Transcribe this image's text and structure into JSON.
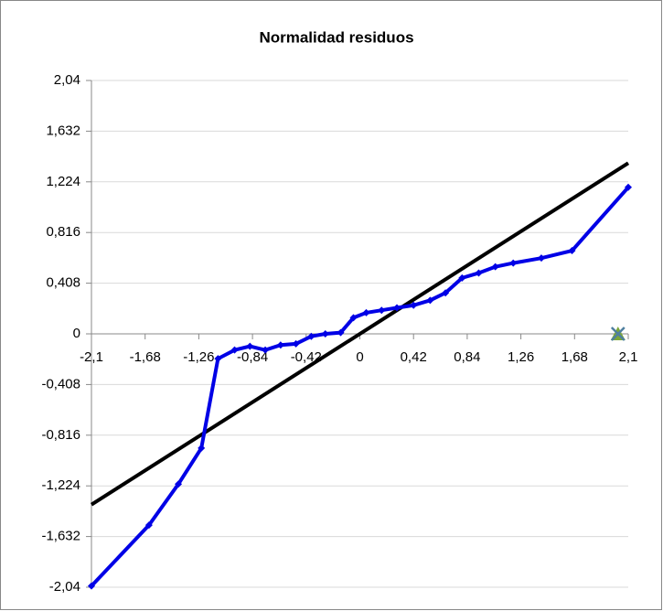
{
  "chart_data": {
    "type": "scatter",
    "title": "Normalidad residuos",
    "xlim": [
      -2.1,
      2.1
    ],
    "xticks": [
      {
        "value": -2.1,
        "label": "-2,1"
      },
      {
        "value": -1.68,
        "label": "-1,68"
      },
      {
        "value": -1.26,
        "label": "-1,26"
      },
      {
        "value": -0.84,
        "label": "-0,84"
      },
      {
        "value": -0.42,
        "label": "-0,42"
      },
      0,
      {
        "value": 0.42,
        "label": "0,42"
      },
      {
        "value": 0.84,
        "label": "0,84"
      },
      {
        "value": 1.26,
        "label": "1,26"
      },
      {
        "value": 1.68,
        "label": "1,68"
      },
      {
        "value": 2.1,
        "label": "2,1"
      }
    ],
    "ylim": [
      -2.04,
      2.04
    ],
    "yticks": [
      {
        "value": -2.04,
        "label": "-2,04"
      },
      {
        "value": -1.632,
        "label": "-1,632"
      },
      {
        "value": -1.224,
        "label": "-1,224"
      },
      {
        "value": -0.816,
        "label": "-0,816"
      },
      {
        "value": -0.408,
        "label": "-0,408"
      },
      0,
      {
        "value": 0.408,
        "label": "0,408"
      },
      {
        "value": 0.816,
        "label": "0,816"
      },
      {
        "value": 1.224,
        "label": "1,224"
      },
      {
        "value": 1.632,
        "label": "1,632"
      },
      {
        "value": 2.04,
        "label": "2,04"
      }
    ],
    "grid": true,
    "series": [
      {
        "color": "#000000",
        "marker": "none",
        "x": [
          -2.1,
          2.1
        ],
        "values": [
          -1.375,
          1.375
        ]
      },
      {
        "color": "#0000e6",
        "marker": "diamond",
        "x": [
          -2.1,
          -1.65,
          -1.42,
          -1.24,
          -1.11,
          -0.98,
          -0.86,
          -0.74,
          -0.62,
          -0.5,
          -0.38,
          -0.27,
          -0.15,
          -0.05,
          0.05,
          0.17,
          0.29,
          0.42,
          0.55,
          0.67,
          0.8,
          0.93,
          1.06,
          1.2,
          1.42,
          1.66,
          2.1
        ],
        "values": [
          -2.03,
          -1.54,
          -1.21,
          -0.92,
          -0.2,
          -0.13,
          -0.1,
          -0.13,
          -0.09,
          -0.08,
          -0.02,
          0.0,
          0.01,
          0.13,
          0.17,
          0.19,
          0.21,
          0.23,
          0.27,
          0.33,
          0.45,
          0.49,
          0.54,
          0.57,
          0.61,
          0.67,
          1.18
        ]
      },
      {
        "color": "#7aa63a",
        "marker": "triangle",
        "x": [
          2.02
        ],
        "values": [
          0
        ]
      },
      {
        "color": "#4f7f9f",
        "marker": "x",
        "x": [
          2.02
        ],
        "values": [
          0
        ]
      }
    ]
  }
}
